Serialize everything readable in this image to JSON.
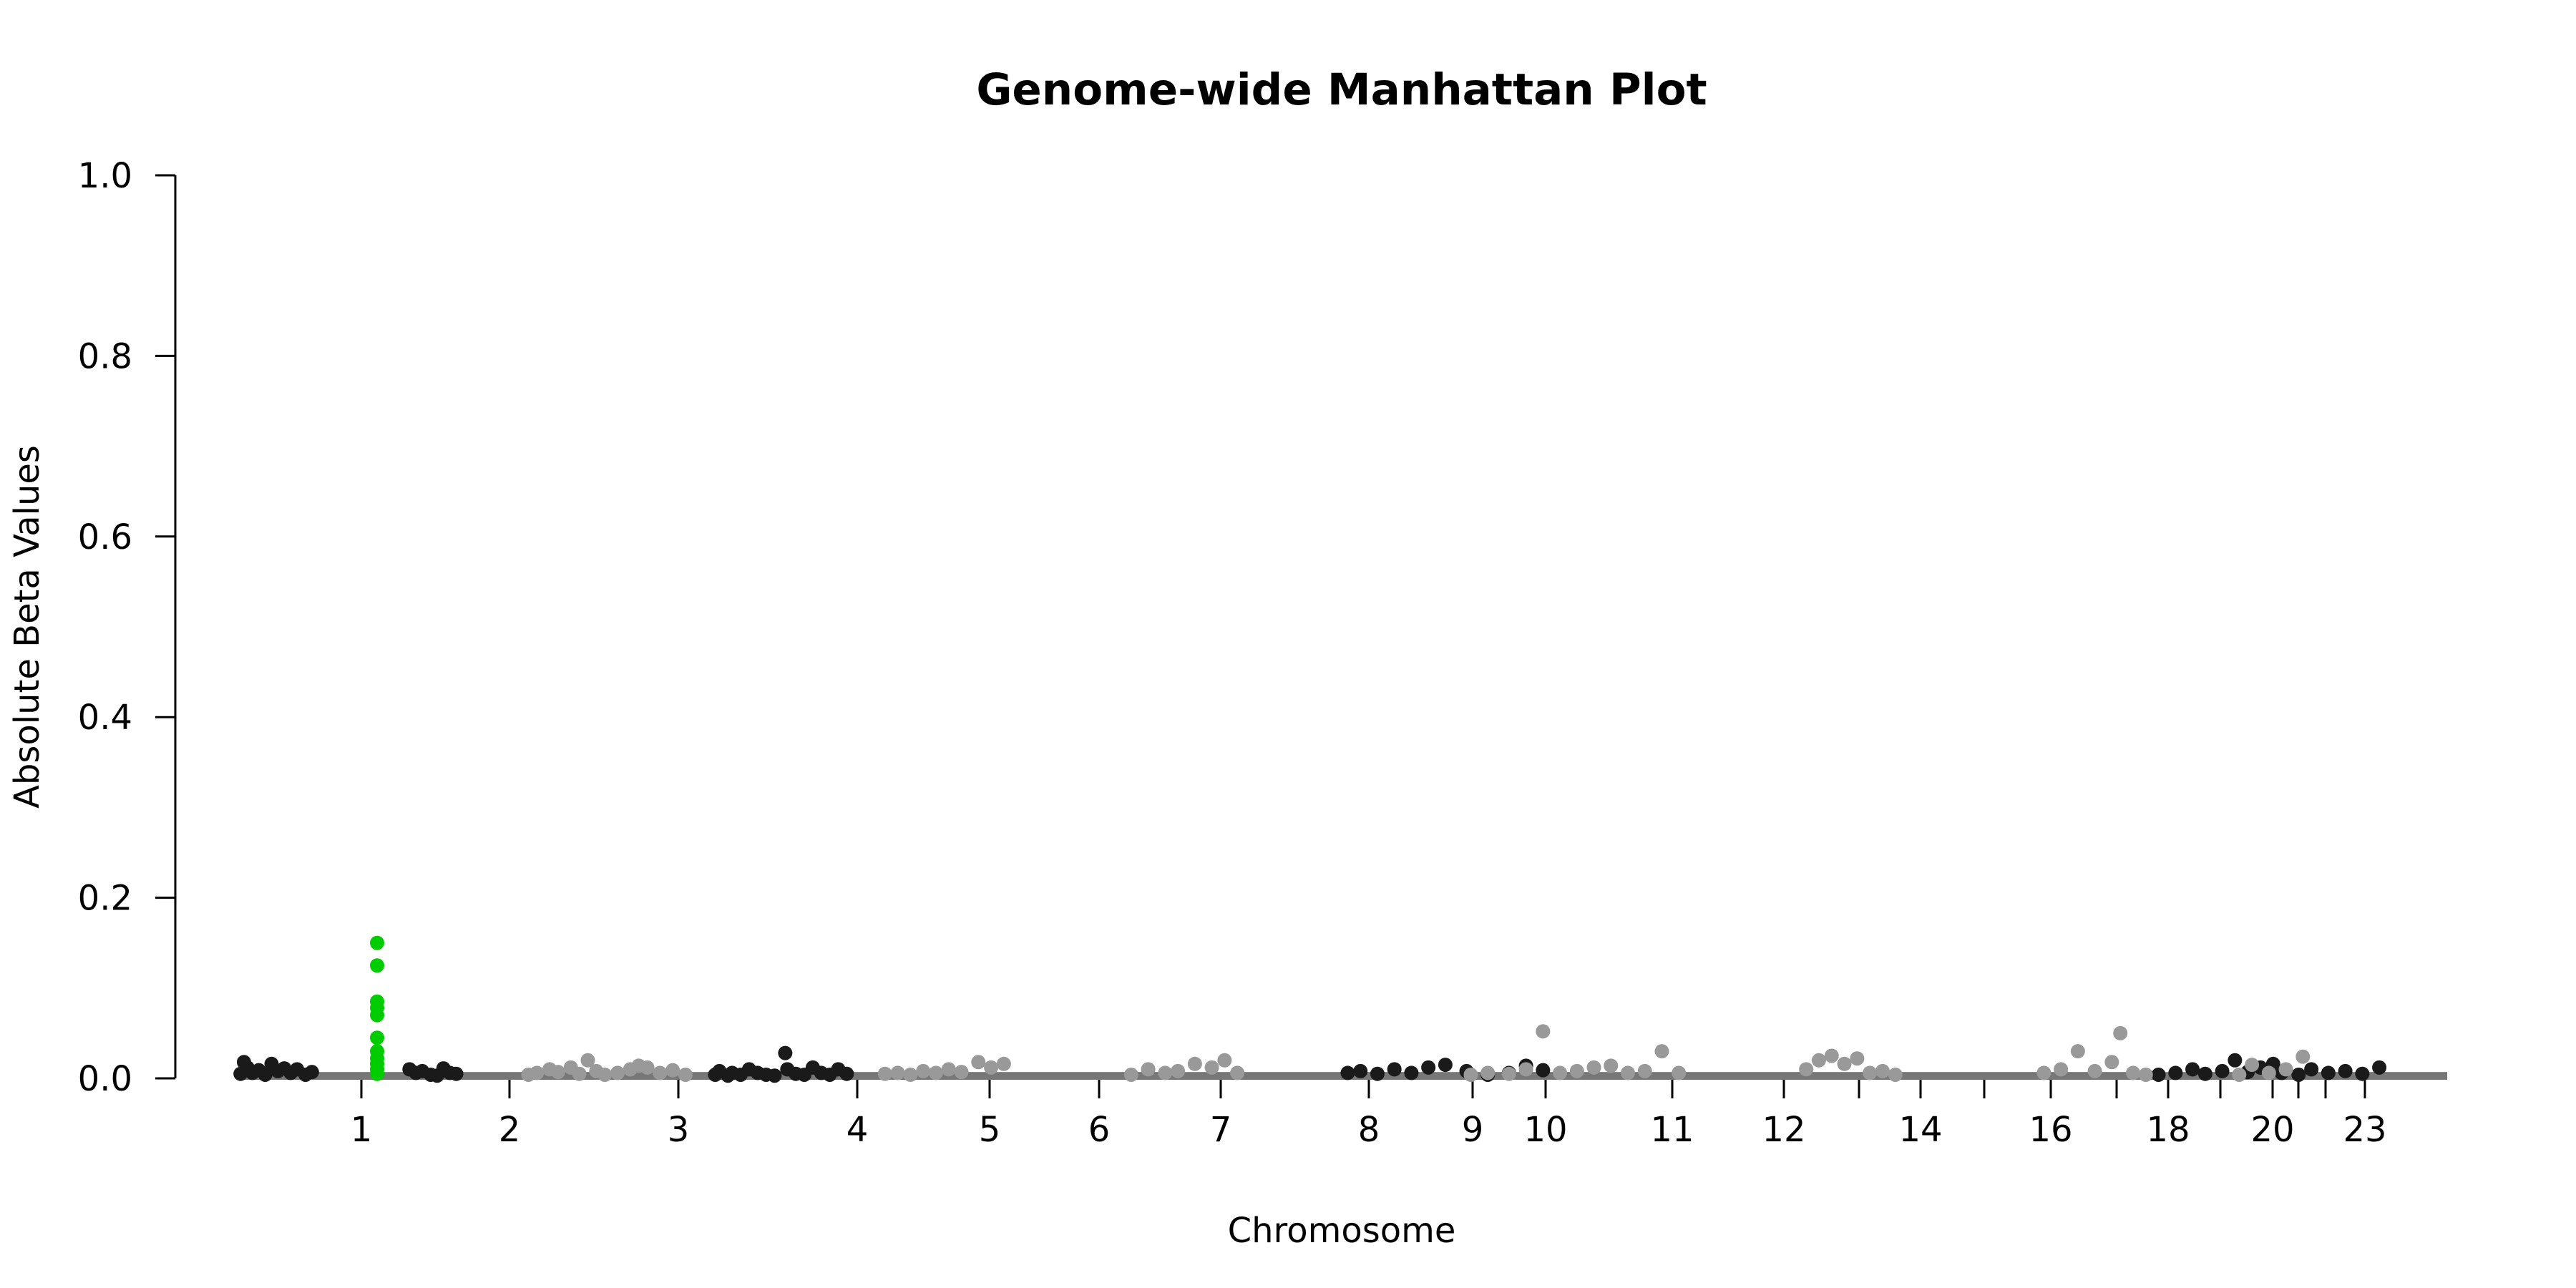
{
  "chart_data": {
    "type": "scatter",
    "title": "Genome-wide Manhattan Plot",
    "xlabel": "Chromosome",
    "ylabel": "Absolute Beta Values",
    "ylim": [
      0,
      1.0
    ],
    "yticks": [
      "0.0",
      "0.2",
      "0.4",
      "0.6",
      "0.8",
      "1.0"
    ],
    "grid": false,
    "legend": "none",
    "colors": {
      "odd_chromosome": "#1a1a1a",
      "even_chromosome": "#999999",
      "highlight": "#00cc00"
    },
    "chromosome_ticks": [
      {
        "label": "1",
        "pos": 0.5
      },
      {
        "label": "2",
        "pos": 1.5
      },
      {
        "label": "3",
        "pos": 2.5
      },
      {
        "label": "4",
        "pos": 3.5
      },
      {
        "label": "5",
        "pos": 4.5
      },
      {
        "label": "6",
        "pos": 5.5
      },
      {
        "label": "7",
        "pos": 6.5
      },
      {
        "label": "8",
        "pos": 7.5
      },
      {
        "label": "9",
        "pos": 8.5
      },
      {
        "label": "10",
        "pos": 9.5
      },
      {
        "label": "11",
        "pos": 10.5
      },
      {
        "label": "12",
        "pos": 11.5
      },
      {
        "label": "",
        "pos": 12.5
      },
      {
        "label": "14",
        "pos": 13.5
      },
      {
        "label": "",
        "pos": 14.5
      },
      {
        "label": "16",
        "pos": 15.5
      },
      {
        "label": "",
        "pos": 16.5
      },
      {
        "label": "18",
        "pos": 17.5
      },
      {
        "label": "",
        "pos": 18.5
      },
      {
        "label": "20",
        "pos": 19.5
      },
      {
        "label": "",
        "pos": 20.5
      },
      {
        "label": "",
        "pos": 21.5
      },
      {
        "label": "23",
        "pos": 22.5
      }
    ],
    "series": [
      {
        "group": "odd",
        "points": [
          [
            0.02,
            0.005
          ],
          [
            0.1,
            0.018
          ],
          [
            0.18,
            0.012
          ],
          [
            0.3,
            0.006
          ],
          [
            0.45,
            0.009
          ],
          [
            0.6,
            0.004
          ],
          [
            0.75,
            0.016
          ],
          [
            0.9,
            0.008
          ],
          [
            1.05,
            0.011
          ],
          [
            1.2,
            0.006
          ],
          [
            1.35,
            0.01
          ],
          [
            1.55,
            0.004
          ],
          [
            1.7,
            0.007
          ],
          [
            4.0,
            0.01
          ],
          [
            4.15,
            0.006
          ],
          [
            4.3,
            0.008
          ],
          [
            4.5,
            0.004
          ],
          [
            4.65,
            0.003
          ],
          [
            4.8,
            0.011
          ],
          [
            4.95,
            0.006
          ],
          [
            5.1,
            0.005
          ],
          [
            11.2,
            0.004
          ],
          [
            11.3,
            0.008
          ],
          [
            11.5,
            0.003
          ],
          [
            11.6,
            0.006
          ],
          [
            11.8,
            0.004
          ],
          [
            12.0,
            0.01
          ],
          [
            12.2,
            0.006
          ],
          [
            12.4,
            0.004
          ],
          [
            12.6,
            0.003
          ],
          [
            12.85,
            0.028
          ],
          [
            12.9,
            0.01
          ],
          [
            13.1,
            0.005
          ],
          [
            13.3,
            0.004
          ],
          [
            13.5,
            0.012
          ],
          [
            13.7,
            0.006
          ],
          [
            13.9,
            0.004
          ],
          [
            14.1,
            0.01
          ],
          [
            14.3,
            0.005
          ],
          [
            26.1,
            0.006
          ],
          [
            26.4,
            0.008
          ],
          [
            26.8,
            0.005
          ],
          [
            27.2,
            0.01
          ],
          [
            27.6,
            0.006
          ],
          [
            28.0,
            0.012
          ],
          [
            28.4,
            0.015
          ],
          [
            28.9,
            0.008
          ],
          [
            29.4,
            0.004
          ],
          [
            29.9,
            0.006
          ],
          [
            30.3,
            0.014
          ],
          [
            30.7,
            0.009
          ],
          [
            45.2,
            0.004
          ],
          [
            45.6,
            0.006
          ],
          [
            46.0,
            0.01
          ],
          [
            46.3,
            0.005
          ],
          [
            46.7,
            0.008
          ],
          [
            47.0,
            0.02
          ],
          [
            47.3,
            0.007
          ],
          [
            47.6,
            0.012
          ],
          [
            47.9,
            0.016
          ],
          [
            48.1,
            0.006
          ],
          [
            48.5,
            0.004
          ],
          [
            48.8,
            0.01
          ],
          [
            49.2,
            0.006
          ],
          [
            49.6,
            0.008
          ],
          [
            50.0,
            0.005
          ],
          [
            50.4,
            0.012
          ]
        ]
      },
      {
        "group": "even",
        "points": [
          [
            6.8,
            0.004
          ],
          [
            7.0,
            0.006
          ],
          [
            7.3,
            0.01
          ],
          [
            7.5,
            0.007
          ],
          [
            7.8,
            0.012
          ],
          [
            8.0,
            0.005
          ],
          [
            8.2,
            0.02
          ],
          [
            8.4,
            0.008
          ],
          [
            8.6,
            0.004
          ],
          [
            8.9,
            0.006
          ],
          [
            9.2,
            0.01
          ],
          [
            9.4,
            0.014
          ],
          [
            9.6,
            0.012
          ],
          [
            9.9,
            0.006
          ],
          [
            10.2,
            0.009
          ],
          [
            10.5,
            0.004
          ],
          [
            15.2,
            0.005
          ],
          [
            15.5,
            0.006
          ],
          [
            15.8,
            0.004
          ],
          [
            16.1,
            0.008
          ],
          [
            16.4,
            0.006
          ],
          [
            16.7,
            0.01
          ],
          [
            17.0,
            0.007
          ],
          [
            17.4,
            0.018
          ],
          [
            17.7,
            0.012
          ],
          [
            18.0,
            0.016
          ],
          [
            21.0,
            0.004
          ],
          [
            21.4,
            0.01
          ],
          [
            21.8,
            0.006
          ],
          [
            22.1,
            0.008
          ],
          [
            22.5,
            0.016
          ],
          [
            22.9,
            0.012
          ],
          [
            23.2,
            0.02
          ],
          [
            23.5,
            0.006
          ],
          [
            29.0,
            0.004
          ],
          [
            29.4,
            0.006
          ],
          [
            29.9,
            0.005
          ],
          [
            30.3,
            0.01
          ],
          [
            30.7,
            0.052
          ],
          [
            31.1,
            0.006
          ],
          [
            31.5,
            0.008
          ],
          [
            31.9,
            0.012
          ],
          [
            32.3,
            0.014
          ],
          [
            32.7,
            0.006
          ],
          [
            33.1,
            0.008
          ],
          [
            33.5,
            0.03
          ],
          [
            33.9,
            0.006
          ],
          [
            36.9,
            0.01
          ],
          [
            37.2,
            0.02
          ],
          [
            37.5,
            0.025
          ],
          [
            37.8,
            0.016
          ],
          [
            38.1,
            0.022
          ],
          [
            38.4,
            0.006
          ],
          [
            38.7,
            0.008
          ],
          [
            39.0,
            0.004
          ],
          [
            42.5,
            0.006
          ],
          [
            42.9,
            0.01
          ],
          [
            43.3,
            0.03
          ],
          [
            43.7,
            0.008
          ],
          [
            44.1,
            0.018
          ],
          [
            44.3,
            0.05
          ],
          [
            44.6,
            0.006
          ],
          [
            44.9,
            0.004
          ],
          [
            47.1,
            0.004
          ],
          [
            47.4,
            0.015
          ],
          [
            47.8,
            0.006
          ],
          [
            48.2,
            0.01
          ],
          [
            48.6,
            0.024
          ]
        ]
      },
      {
        "group": "highlight",
        "points": [
          [
            0.55,
            0.15
          ],
          [
            0.55,
            0.125
          ],
          [
            0.55,
            0.085
          ],
          [
            0.55,
            0.078
          ],
          [
            0.55,
            0.07
          ],
          [
            0.55,
            0.045
          ],
          [
            0.55,
            0.03
          ],
          [
            0.55,
            0.022
          ],
          [
            0.55,
            0.016
          ],
          [
            0.55,
            0.01
          ],
          [
            0.55,
            0.005
          ]
        ]
      }
    ]
  }
}
